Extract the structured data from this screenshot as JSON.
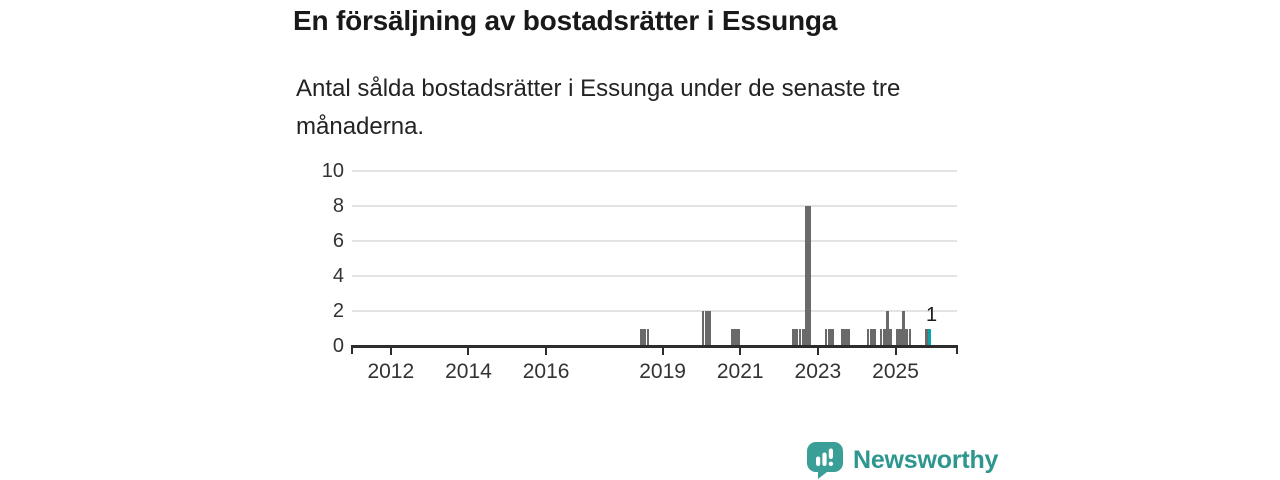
{
  "header": {
    "title": "En försäljning av bostadsrätter i Essunga",
    "subtitle": "Antal sålda bostadsrätter i Essunga under de senaste tre månaderna."
  },
  "chart_data": {
    "type": "bar",
    "title": "En försäljning av bostadsrätter i Essunga",
    "subtitle": "Antal sålda bostadsrätter i Essunga under de senaste tre månaderna.",
    "ylim": [
      0,
      10
    ],
    "y_ticks": [
      0,
      2,
      4,
      6,
      8,
      10
    ],
    "x_ticks": [
      2012,
      2014,
      2016,
      2019,
      2021,
      2023,
      2025
    ],
    "x_domain_months": [
      "2011-01",
      "2026-07"
    ],
    "grid": "horizontal",
    "legend": "none",
    "series": [
      {
        "month": "2018-06",
        "value": 1
      },
      {
        "month": "2018-07",
        "value": 1
      },
      {
        "month": "2018-08",
        "value": 1
      },
      {
        "month": "2020-01",
        "value": 2
      },
      {
        "month": "2020-02",
        "value": 2
      },
      {
        "month": "2020-03",
        "value": 2
      },
      {
        "month": "2020-10",
        "value": 1
      },
      {
        "month": "2020-11",
        "value": 1
      },
      {
        "month": "2020-12",
        "value": 1
      },
      {
        "month": "2022-05",
        "value": 1
      },
      {
        "month": "2022-06",
        "value": 1
      },
      {
        "month": "2022-07",
        "value": 1
      },
      {
        "month": "2022-08",
        "value": 1
      },
      {
        "month": "2022-09",
        "value": 8
      },
      {
        "month": "2022-10",
        "value": 8
      },
      {
        "month": "2023-03",
        "value": 1
      },
      {
        "month": "2023-04",
        "value": 1
      },
      {
        "month": "2023-05",
        "value": 1
      },
      {
        "month": "2023-08",
        "value": 1
      },
      {
        "month": "2023-09",
        "value": 1
      },
      {
        "month": "2023-10",
        "value": 1
      },
      {
        "month": "2024-04",
        "value": 1
      },
      {
        "month": "2024-05",
        "value": 1
      },
      {
        "month": "2024-06",
        "value": 1
      },
      {
        "month": "2024-08",
        "value": 1
      },
      {
        "month": "2024-09",
        "value": 1
      },
      {
        "month": "2024-10",
        "value": 2
      },
      {
        "month": "2024-11",
        "value": 1
      },
      {
        "month": "2025-01",
        "value": 1
      },
      {
        "month": "2025-02",
        "value": 1
      },
      {
        "month": "2025-03",
        "value": 2
      },
      {
        "month": "2025-04",
        "value": 1
      },
      {
        "month": "2025-05",
        "value": 1
      },
      {
        "month": "2025-10",
        "value": 1
      },
      {
        "month": "2025-11",
        "value": 1,
        "current": true
      }
    ],
    "annotation": {
      "text": "1",
      "month": "2025-11"
    },
    "colors": {
      "bar": "#6a6a6a",
      "highlight": "#0ba3ab",
      "gridline": "#e3e3e3",
      "axis": "#2d2d2d",
      "tick_label": "#333333"
    }
  },
  "footer": {
    "brand": "Newsworthy",
    "logo_icon": "speech-bubble-bar-chart-icon",
    "logo_color": "#3a9f97",
    "brand_text_color": "#2d968f"
  }
}
